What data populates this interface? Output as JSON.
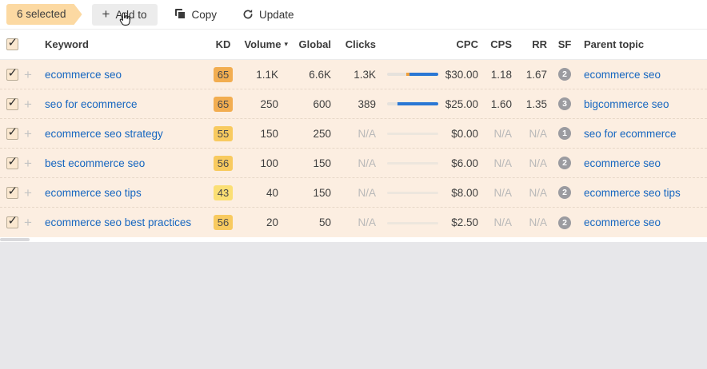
{
  "toolbar": {
    "selected_label": "6 selected",
    "add_to_label": "Add to",
    "copy_label": "Copy",
    "update_label": "Update"
  },
  "icons": {
    "plus": "+",
    "sort_desc": "▾",
    "check": "✓"
  },
  "table": {
    "columns": {
      "keyword": "Keyword",
      "kd": "KD",
      "volume": "Volume",
      "global": "Global",
      "clicks": "Clicks",
      "cpc": "CPC",
      "cps": "CPS",
      "rr": "RR",
      "sf": "SF",
      "parent": "Parent topic"
    },
    "sorted_by": "Volume",
    "sort_direction": "desc",
    "rows": [
      {
        "checked": true,
        "keyword": "ecommerce seo",
        "kd": "65",
        "kd_color": "#f2ad50",
        "volume": "1.1K",
        "global": "6.6K",
        "clicks": "1.3K",
        "bar": {
          "gray": 38,
          "orange": 6,
          "blue": 56
        },
        "cpc": "$30.00",
        "cps": "1.18",
        "rr": "1.67",
        "sf": "2",
        "parent": "ecommerce seo"
      },
      {
        "checked": true,
        "keyword": "seo for ecommerce",
        "kd": "65",
        "kd_color": "#f2ad50",
        "volume": "250",
        "global": "600",
        "clicks": "389",
        "bar": {
          "gray": 20,
          "orange": 0,
          "blue": 80
        },
        "cpc": "$25.00",
        "cps": "1.60",
        "rr": "1.35",
        "sf": "3",
        "parent": "bigcommerce seo"
      },
      {
        "checked": true,
        "keyword": "ecommerce seo strategy",
        "kd": "55",
        "kd_color": "#f8ca5f",
        "volume": "150",
        "global": "250",
        "clicks": "N/A",
        "bar": {
          "gray": 100,
          "orange": 0,
          "blue": 0
        },
        "cpc": "$0.00",
        "cps": "N/A",
        "rr": "N/A",
        "sf": "1",
        "parent": "seo for ecommerce"
      },
      {
        "checked": true,
        "keyword": "best ecommerce seo",
        "kd": "56",
        "kd_color": "#f8ca5f",
        "volume": "100",
        "global": "150",
        "clicks": "N/A",
        "bar": {
          "gray": 100,
          "orange": 0,
          "blue": 0
        },
        "cpc": "$6.00",
        "cps": "N/A",
        "rr": "N/A",
        "sf": "2",
        "parent": "ecommerce seo"
      },
      {
        "checked": true,
        "keyword": "ecommerce seo tips",
        "kd": "43",
        "kd_color": "#fbdf74",
        "volume": "40",
        "global": "150",
        "clicks": "N/A",
        "bar": {
          "gray": 100,
          "orange": 0,
          "blue": 0
        },
        "cpc": "$8.00",
        "cps": "N/A",
        "rr": "N/A",
        "sf": "2",
        "parent": "ecommerce seo tips"
      },
      {
        "checked": true,
        "keyword": "ecommerce seo best practices",
        "kd": "56",
        "kd_color": "#f8ca5f",
        "volume": "20",
        "global": "50",
        "clicks": "N/A",
        "bar": {
          "gray": 100,
          "orange": 0,
          "blue": 0
        },
        "cpc": "$2.50",
        "cps": "N/A",
        "rr": "N/A",
        "sf": "2",
        "parent": "ecommerce seo"
      }
    ]
  },
  "colors": {
    "selected_row_bg": "#fceee1",
    "selected_badge_bg": "#fcd9a2",
    "link_blue": "#1666c0",
    "bar_blue": "#2a77d4",
    "bar_orange": "#f0a03c",
    "bar_track": "#e6e2dc",
    "sf_badge_bg": "#9b9ba0",
    "na_gray": "#b9b9b9"
  }
}
